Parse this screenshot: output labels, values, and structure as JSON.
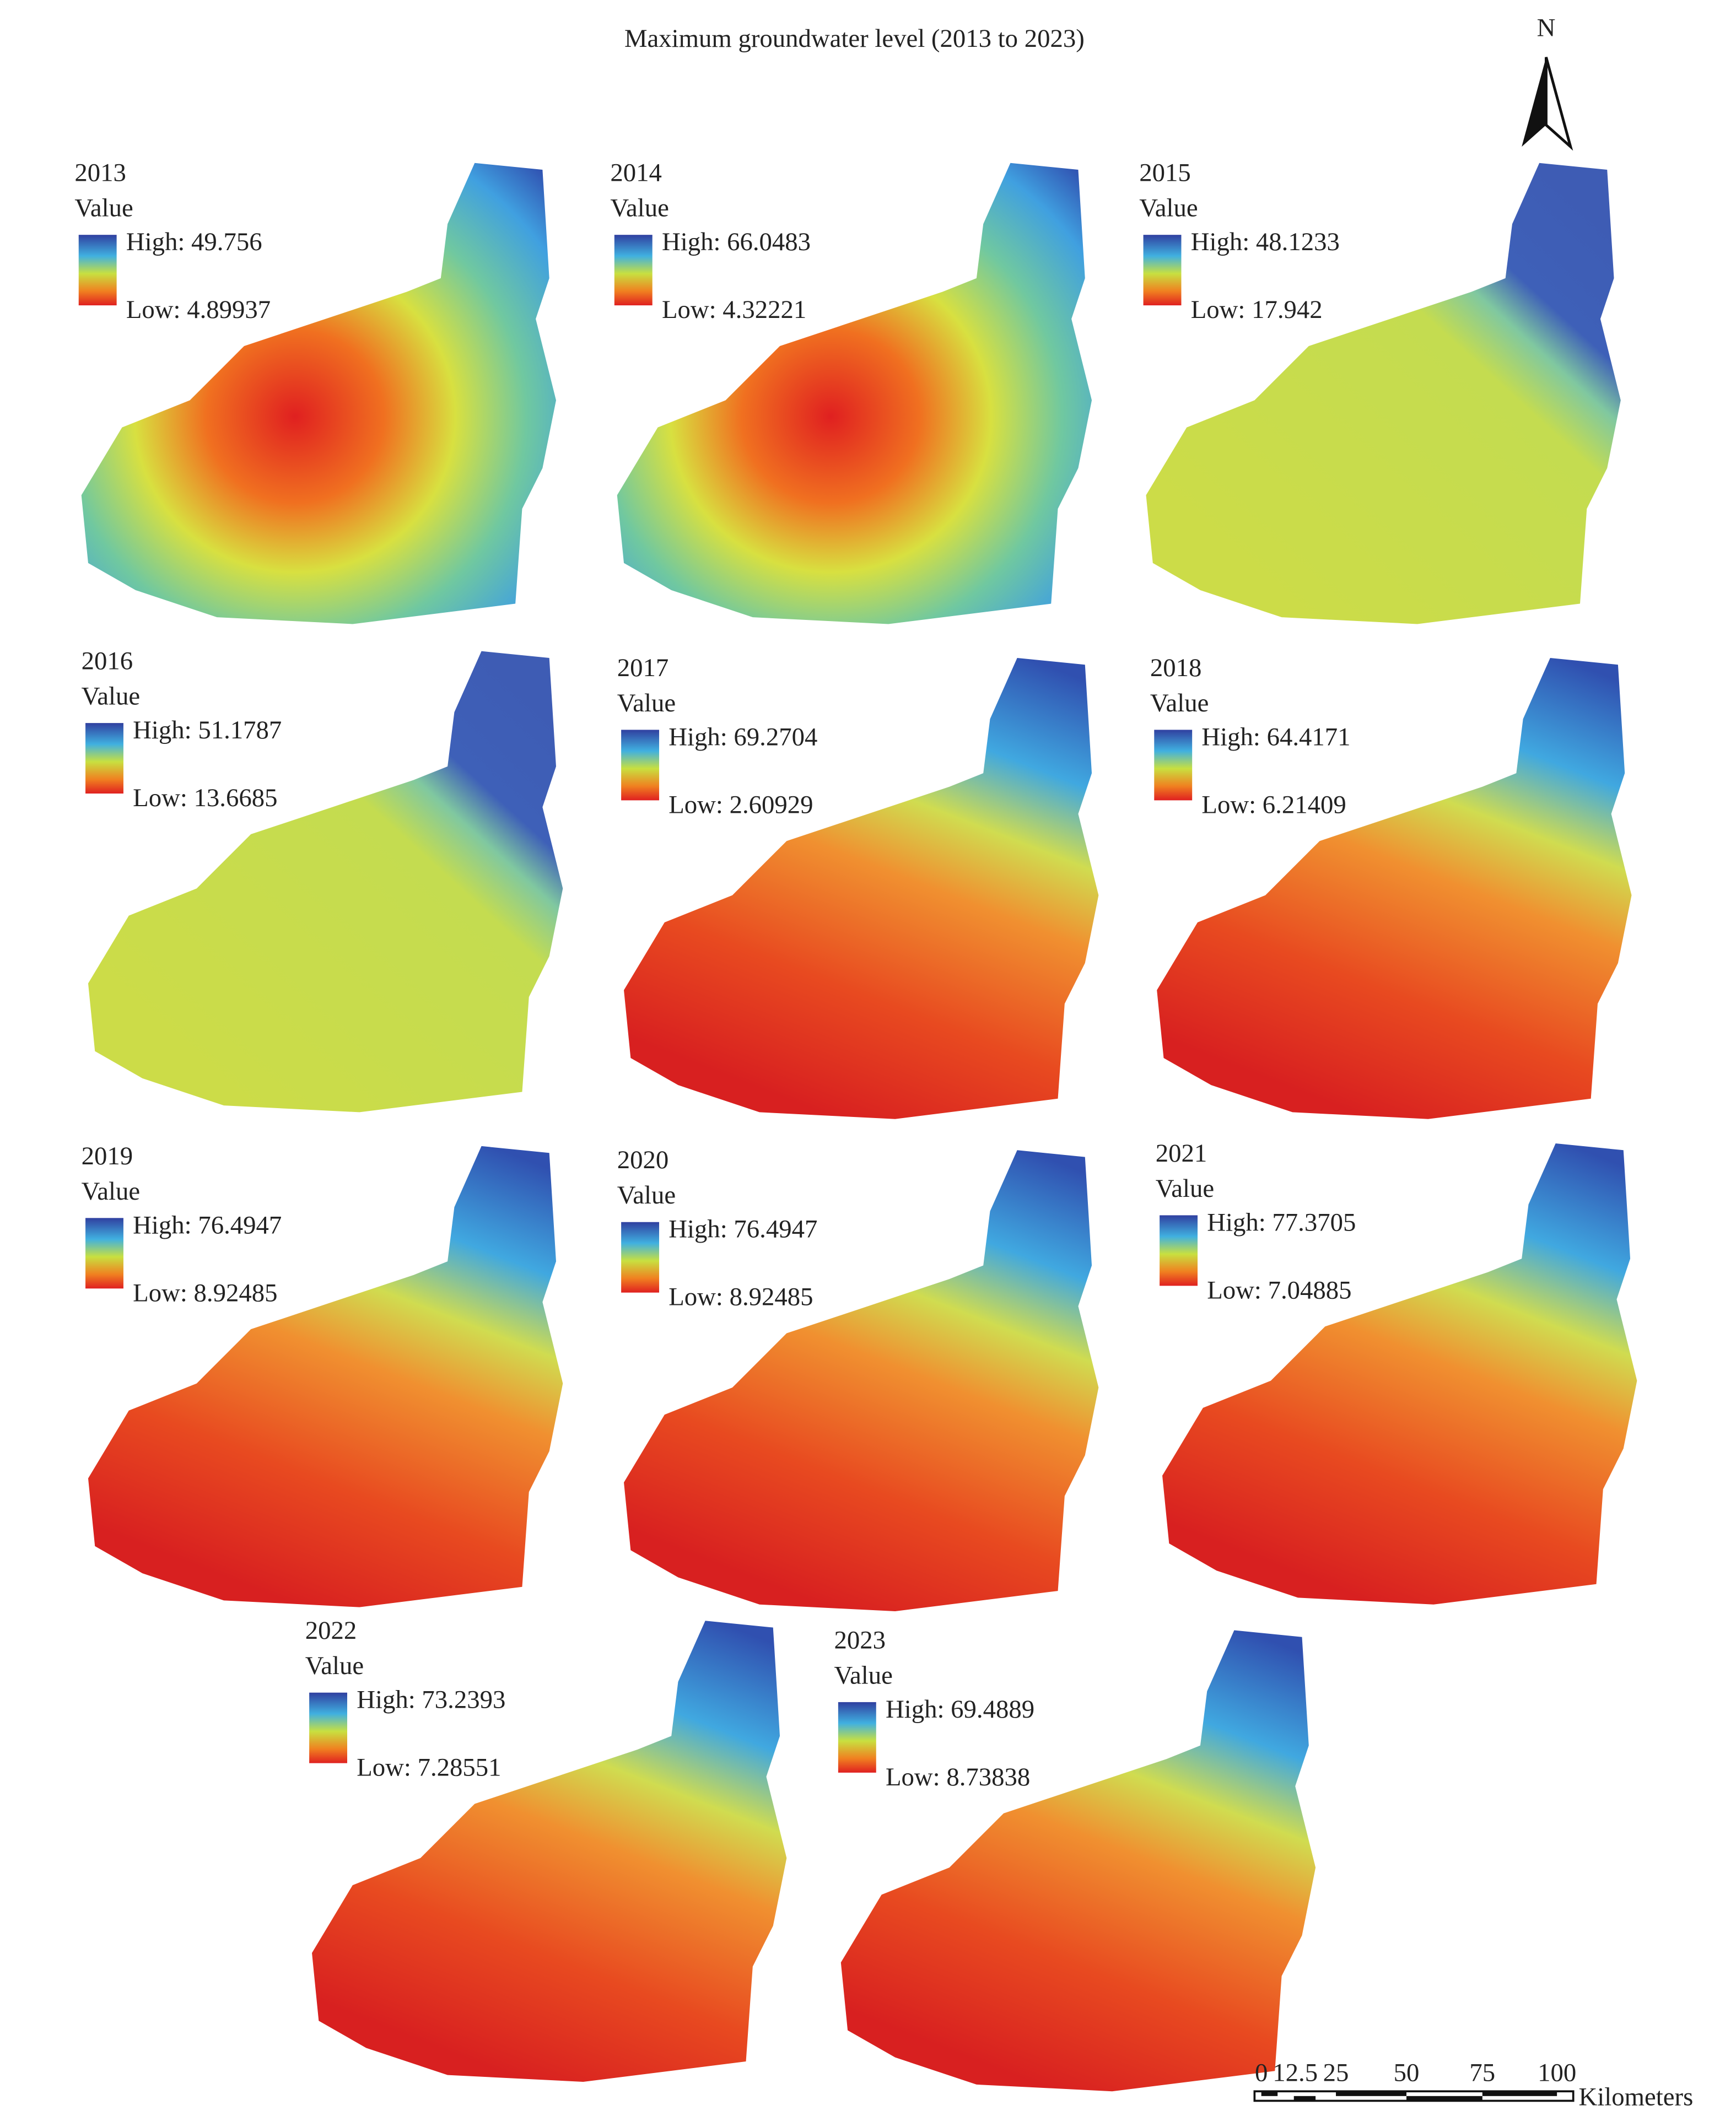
{
  "title": "Maximum groundwater level (2013 to 2023)",
  "north": "N",
  "panels": [
    {
      "year": "2013",
      "legend_title": "Value",
      "high": "High: 49.756",
      "low": "Low: 4.89937"
    },
    {
      "year": "2014",
      "legend_title": "Value",
      "high": "High: 66.0483",
      "low": "Low: 4.32221"
    },
    {
      "year": "2015",
      "legend_title": "Value",
      "high": "High: 48.1233",
      "low": "Low: 17.942"
    },
    {
      "year": "2016",
      "legend_title": "Value",
      "high": "High: 51.1787",
      "low": "Low: 13.6685"
    },
    {
      "year": "2017",
      "legend_title": "Value",
      "high": "High: 69.2704",
      "low": "Low: 2.60929"
    },
    {
      "year": "2018",
      "legend_title": "Value",
      "high": "High: 64.4171",
      "low": "Low: 6.21409"
    },
    {
      "year": "2019",
      "legend_title": "Value",
      "high": "High: 76.4947",
      "low": "Low: 8.92485"
    },
    {
      "year": "2020",
      "legend_title": "Value",
      "high": "High: 76.4947",
      "low": "Low: 8.92485"
    },
    {
      "year": "2021",
      "legend_title": "Value",
      "high": "High: 77.3705",
      "low": "Low: 7.04885"
    },
    {
      "year": "2022",
      "legend_title": "Value",
      "high": "High: 73.2393",
      "low": "Low: 7.28551"
    },
    {
      "year": "2023",
      "legend_title": "Value",
      "high": "High: 69.4889",
      "low": "Low: 8.73838"
    }
  ],
  "scale_bar": {
    "ticks": [
      "0",
      "12.5",
      "25",
      "50",
      "75",
      "100"
    ],
    "unit": "Kilometers"
  }
}
